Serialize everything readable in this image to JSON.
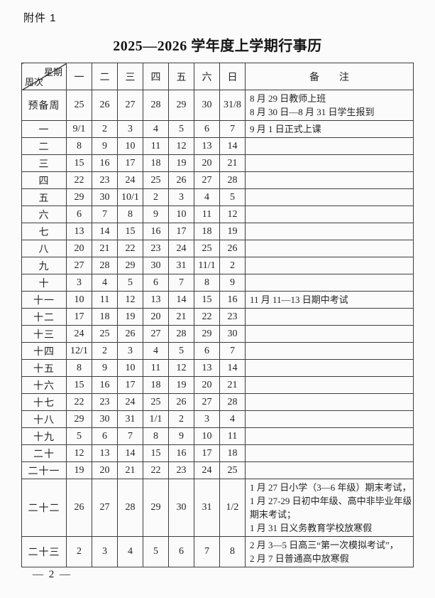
{
  "page": {
    "attachment_label": "附件 1",
    "title": "2025—2026 学年度上学期行事历",
    "page_number": "— 2 —"
  },
  "colors": {
    "background": "#fbfbfb",
    "border": "#3d3d3d",
    "text": "#242424"
  },
  "table": {
    "corner": {
      "top": "星期",
      "bottom": "周次"
    },
    "day_headers": [
      "一",
      "二",
      "三",
      "四",
      "五",
      "六",
      "日"
    ],
    "remark_header": "备　　注",
    "rows": [
      {
        "week": "预备周",
        "days": [
          "25",
          "26",
          "27",
          "28",
          "29",
          "30",
          "31/8"
        ],
        "remarks": [
          "8 月 29 日教师上班",
          "8 月 30 日—8 月 31 日学生报到"
        ]
      },
      {
        "week": "一",
        "days": [
          "9/1",
          "2",
          "3",
          "4",
          "5",
          "6",
          "7"
        ],
        "remarks": [
          "9 月 1 日正式上课"
        ]
      },
      {
        "week": "二",
        "days": [
          "8",
          "9",
          "10",
          "11",
          "12",
          "13",
          "14"
        ],
        "remarks": []
      },
      {
        "week": "三",
        "days": [
          "15",
          "16",
          "17",
          "18",
          "19",
          "20",
          "21"
        ],
        "remarks": []
      },
      {
        "week": "四",
        "days": [
          "22",
          "23",
          "24",
          "25",
          "26",
          "27",
          "28"
        ],
        "remarks": []
      },
      {
        "week": "五",
        "days": [
          "29",
          "30",
          "10/1",
          "2",
          "3",
          "4",
          "5"
        ],
        "remarks": []
      },
      {
        "week": "六",
        "days": [
          "6",
          "7",
          "8",
          "9",
          "10",
          "11",
          "12"
        ],
        "remarks": []
      },
      {
        "week": "七",
        "days": [
          "13",
          "14",
          "15",
          "16",
          "17",
          "18",
          "19"
        ],
        "remarks": []
      },
      {
        "week": "八",
        "days": [
          "20",
          "21",
          "22",
          "23",
          "24",
          "25",
          "26"
        ],
        "remarks": []
      },
      {
        "week": "九",
        "days": [
          "27",
          "28",
          "29",
          "30",
          "31",
          "11/1",
          "2"
        ],
        "remarks": []
      },
      {
        "week": "十",
        "days": [
          "3",
          "4",
          "5",
          "6",
          "7",
          "8",
          "9"
        ],
        "remarks": []
      },
      {
        "week": "十一",
        "days": [
          "10",
          "11",
          "12",
          "13",
          "14",
          "15",
          "16"
        ],
        "remarks": [
          "11 月 11—13 日期中考试"
        ]
      },
      {
        "week": "十二",
        "days": [
          "17",
          "18",
          "19",
          "20",
          "21",
          "22",
          "23"
        ],
        "remarks": []
      },
      {
        "week": "十三",
        "days": [
          "24",
          "25",
          "26",
          "27",
          "28",
          "29",
          "30"
        ],
        "remarks": []
      },
      {
        "week": "十四",
        "days": [
          "12/1",
          "2",
          "3",
          "4",
          "5",
          "6",
          "7"
        ],
        "remarks": []
      },
      {
        "week": "十五",
        "days": [
          "8",
          "9",
          "10",
          "11",
          "12",
          "13",
          "14"
        ],
        "remarks": []
      },
      {
        "week": "十六",
        "days": [
          "15",
          "16",
          "17",
          "18",
          "19",
          "20",
          "21"
        ],
        "remarks": []
      },
      {
        "week": "十七",
        "days": [
          "22",
          "23",
          "24",
          "25",
          "26",
          "27",
          "28"
        ],
        "remarks": []
      },
      {
        "week": "十八",
        "days": [
          "29",
          "30",
          "31",
          "1/1",
          "2",
          "3",
          "4"
        ],
        "remarks": []
      },
      {
        "week": "十九",
        "days": [
          "5",
          "6",
          "7",
          "8",
          "9",
          "10",
          "11"
        ],
        "remarks": []
      },
      {
        "week": "二十",
        "days": [
          "12",
          "13",
          "14",
          "15",
          "16",
          "17",
          "18"
        ],
        "remarks": []
      },
      {
        "week": "二十一",
        "days": [
          "19",
          "20",
          "21",
          "22",
          "23",
          "24",
          "25"
        ],
        "remarks": []
      },
      {
        "week": "二十二",
        "days": [
          "26",
          "27",
          "28",
          "29",
          "30",
          "31",
          "1/2"
        ],
        "remarks": [
          "1 月 27 日小学（3—6 年级）期末考试，",
          "1 月 27-29 日初中年级、高中非毕业年级",
          "期末考试；",
          "1 月 31 日义务教育学校放寒假"
        ]
      },
      {
        "week": "二十三",
        "days": [
          "2",
          "3",
          "4",
          "5",
          "6",
          "7",
          "8"
        ],
        "remarks": [
          "2 月 3—5 日高三“第一次模拟考试”，",
          "2 月 7 日普通高中放寒假"
        ]
      }
    ]
  }
}
